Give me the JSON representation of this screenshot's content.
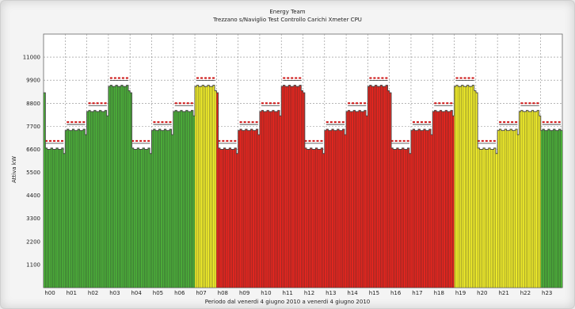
{
  "chart_data": {
    "type": "bar",
    "title": "Energy Team",
    "subtitle": "Trezzano s/Naviglio Test Controllo Carichi Xmeter CPU",
    "xlabel": "Periodo dal venerdi 4 giugno 2010 a venerdi 4 giugno 2010",
    "ylabel": "Attiva kW",
    "ylim": [
      0,
      12100
    ],
    "yticks": [
      1100,
      2200,
      3300,
      4400,
      5500,
      6600,
      7700,
      8800,
      9900,
      11000
    ],
    "grid": true,
    "hours": [
      "h00",
      "h01",
      "h02",
      "h03",
      "h04",
      "h05",
      "h06",
      "h07",
      "h08",
      "h09",
      "h10",
      "h11",
      "h12",
      "h13",
      "h14",
      "h15",
      "h16",
      "h17",
      "h18",
      "h19",
      "h20",
      "h21",
      "h22",
      "h23"
    ],
    "categories": [
      "00",
      "01",
      "02",
      "03",
      "04",
      "05",
      "06",
      "07",
      "08",
      "09",
      "10",
      "11",
      "12",
      "13",
      "14",
      "15",
      "16",
      "17",
      "18",
      "19",
      "20",
      "21",
      "22",
      "23"
    ],
    "hour_pattern": [
      6600,
      7500,
      8400,
      9600
    ],
    "hour_pattern_start": [
      0,
      0,
      0,
      0,
      0,
      0,
      0,
      0,
      0,
      0,
      0,
      0,
      0,
      0,
      0,
      0,
      0,
      0,
      0,
      0,
      0,
      0,
      0,
      2
    ],
    "bar_colors": {
      "green": "#4caf3a",
      "yellow": "#f2ee2a",
      "red": "#e8261f"
    },
    "hour_colors": [
      "green",
      "green",
      "green",
      "green",
      "green",
      "green",
      "green",
      "yellow",
      "red",
      "red",
      "red",
      "red",
      "red",
      "red",
      "red",
      "red",
      "red",
      "red",
      "red",
      "yellow",
      "yellow",
      "yellow",
      "yellow",
      "green"
    ],
    "limit_offset": 400,
    "limit_color": "#cc1111",
    "bars_per_hour": 12
  }
}
